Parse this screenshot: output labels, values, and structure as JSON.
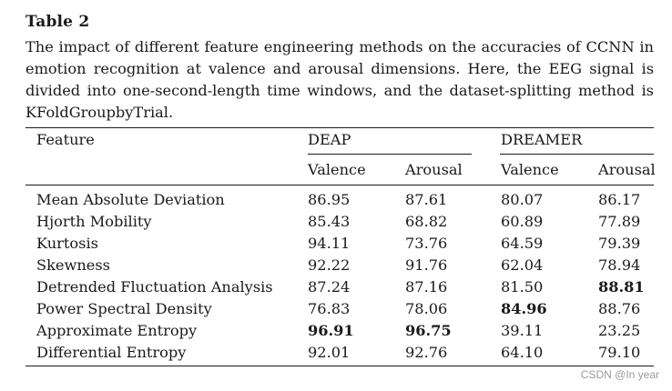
{
  "table": {
    "label": "Table 2",
    "caption": "The impact of different feature engineering methods on the accuracies of CCNN in emotion recognition at valence and arousal dimensions. Here, the EEG signal is divided into one-second-length time windows, and the dataset-splitting method is KFoldGroupbyTrial.",
    "header": {
      "feature": "Feature",
      "groups": [
        "DEAP",
        "DREAMER"
      ],
      "subcolumns": [
        "Valence",
        "Arousal",
        "Valence",
        "Arousal"
      ]
    },
    "rows": [
      {
        "feature": "Mean Absolute Deviation",
        "values": [
          "86.95",
          "87.61",
          "80.07",
          "86.17"
        ],
        "bold": [
          false,
          false,
          false,
          false
        ]
      },
      {
        "feature": "Hjorth Mobility",
        "values": [
          "85.43",
          "68.82",
          "60.89",
          "77.89"
        ],
        "bold": [
          false,
          false,
          false,
          false
        ]
      },
      {
        "feature": "Kurtosis",
        "values": [
          "94.11",
          "73.76",
          "64.59",
          "79.39"
        ],
        "bold": [
          false,
          false,
          false,
          false
        ]
      },
      {
        "feature": "Skewness",
        "values": [
          "92.22",
          "91.76",
          "62.04",
          "78.94"
        ],
        "bold": [
          false,
          false,
          false,
          false
        ]
      },
      {
        "feature": "Detrended Fluctuation Analysis",
        "values": [
          "87.24",
          "87.16",
          "81.50",
          "88.81"
        ],
        "bold": [
          false,
          false,
          false,
          true
        ]
      },
      {
        "feature": "Power Spectral Density",
        "values": [
          "76.83",
          "78.06",
          "84.96",
          "88.76"
        ],
        "bold": [
          false,
          false,
          true,
          false
        ]
      },
      {
        "feature": "Approximate Entropy",
        "values": [
          "96.91",
          "96.75",
          "39.11",
          "23.25"
        ],
        "bold": [
          true,
          true,
          false,
          false
        ]
      },
      {
        "feature": "Differential Entropy",
        "values": [
          "92.01",
          "92.76",
          "64.10",
          "79.10"
        ],
        "bold": [
          false,
          false,
          false,
          false
        ]
      }
    ]
  },
  "watermark": "CSDN @In year"
}
